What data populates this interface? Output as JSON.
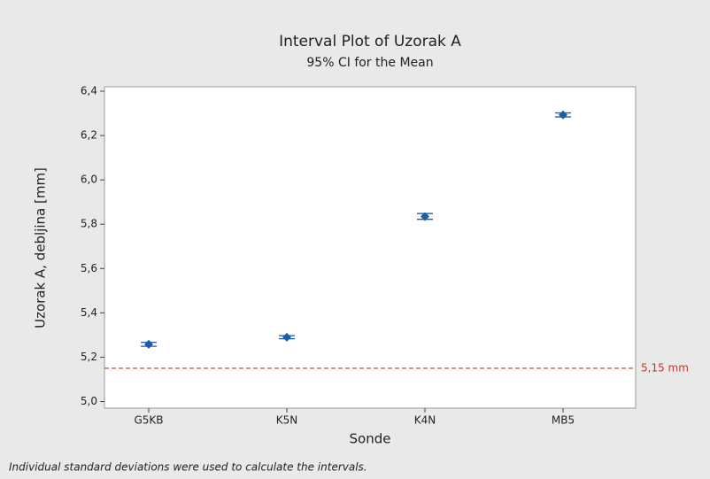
{
  "chart_data": {
    "type": "interval",
    "title": "Interval Plot of Uzorak A",
    "subtitle": "95% CI for the Mean",
    "x_label": "Sonde",
    "y_label": "Uzorak A, debljina [mm]",
    "categories": [
      "G5KB",
      "K5N",
      "K4N",
      "MB5"
    ],
    "values": [
      5.258,
      5.29,
      5.835,
      6.293
    ],
    "errors": [
      0.009,
      0.007,
      0.013,
      0.009
    ],
    "color": "#1a5ea8",
    "ylim": [
      4.97,
      6.42
    ],
    "yticks": [
      {
        "value": 5.0,
        "label": "5,0"
      },
      {
        "value": 5.2,
        "label": "5,2"
      },
      {
        "value": 5.4,
        "label": "5,4"
      },
      {
        "value": 5.6,
        "label": "5,6"
      },
      {
        "value": 5.8,
        "label": "5,8"
      },
      {
        "value": 6.0,
        "label": "6,0"
      },
      {
        "value": 6.2,
        "label": "6,2"
      },
      {
        "value": 6.4,
        "label": "6,4"
      }
    ],
    "reference_line": {
      "value": 5.15,
      "label": "5,15 mm",
      "color": "#c0392b"
    },
    "footnote": "Individual standard deviations were used to calculate the intervals."
  }
}
